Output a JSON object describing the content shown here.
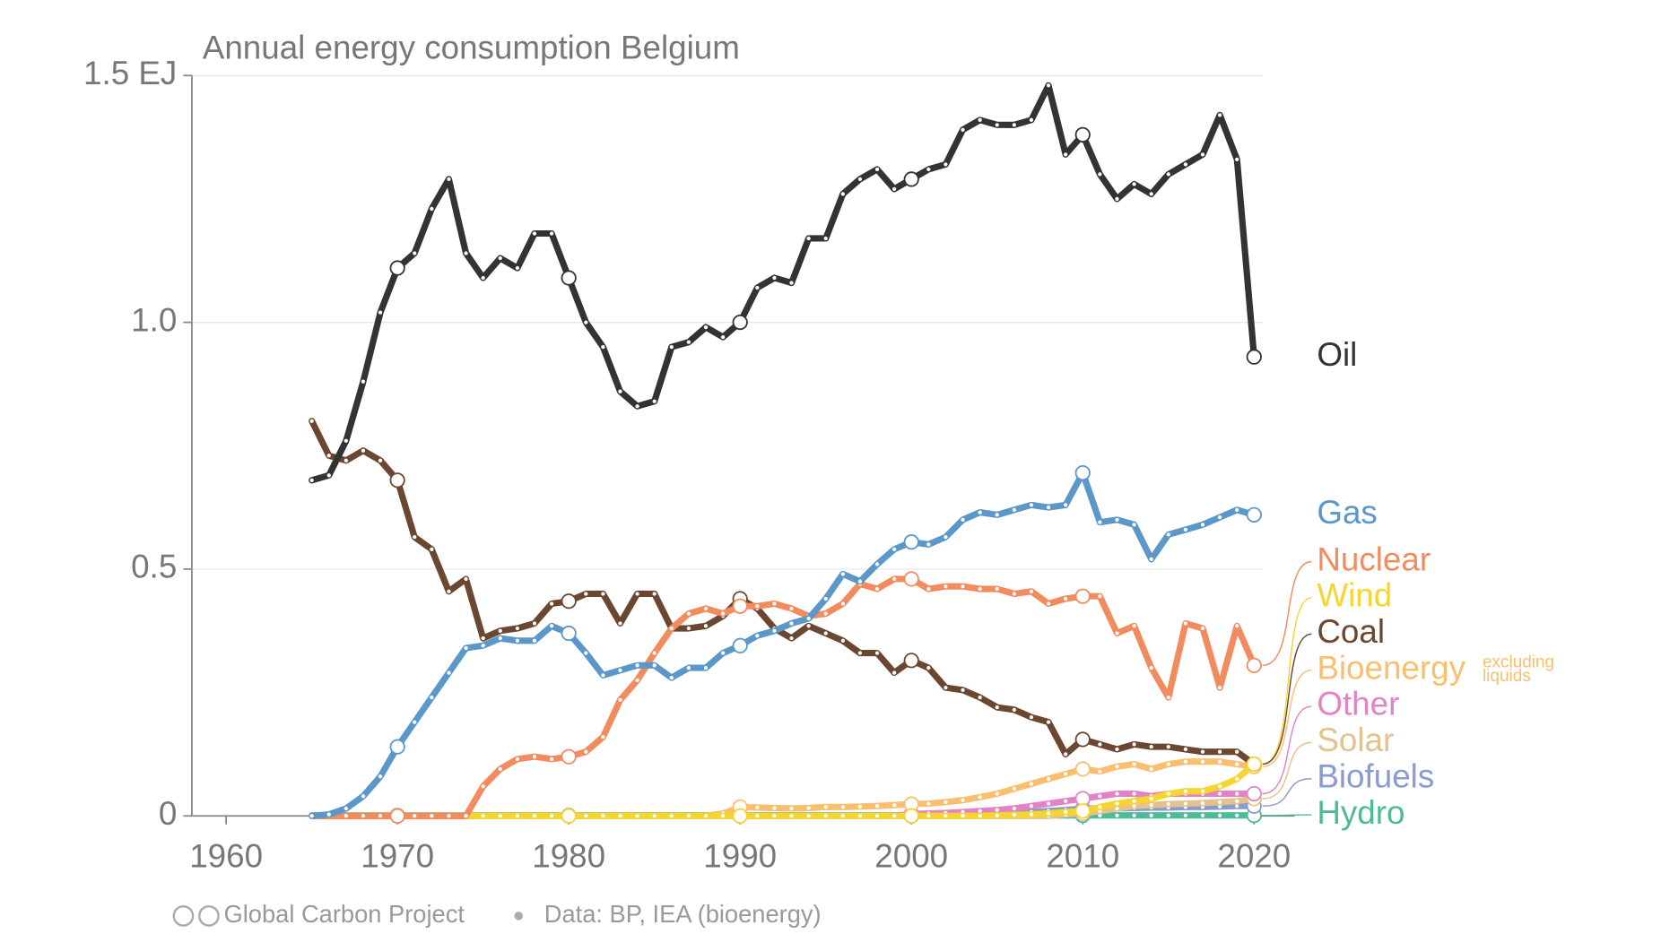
{
  "chart_data": {
    "type": "line",
    "title": "Annual energy consumption Belgium",
    "x": [
      1965,
      1966,
      1967,
      1968,
      1969,
      1970,
      1971,
      1972,
      1973,
      1974,
      1975,
      1976,
      1977,
      1978,
      1979,
      1980,
      1981,
      1982,
      1983,
      1984,
      1985,
      1986,
      1987,
      1988,
      1989,
      1990,
      1991,
      1992,
      1993,
      1994,
      1995,
      1996,
      1997,
      1998,
      1999,
      2000,
      2001,
      2002,
      2003,
      2004,
      2005,
      2006,
      2007,
      2008,
      2009,
      2010,
      2011,
      2012,
      2013,
      2014,
      2015,
      2016,
      2017,
      2018,
      2019,
      2020
    ],
    "xlim": [
      1958,
      2020.5
    ],
    "xticks": [
      1960,
      1970,
      1980,
      1990,
      2000,
      2010,
      2020
    ],
    "ylim": [
      0,
      1.5
    ],
    "yticks": [
      0,
      0.5,
      {
        "value": 1.0,
        "label": "1.0"
      },
      {
        "value": 1.5,
        "label": "1.5 EJ"
      }
    ],
    "grid": true,
    "series": [
      {
        "name": "Oil",
        "color": "#333333",
        "values": [
          0.68,
          0.69,
          0.76,
          0.88,
          1.02,
          1.11,
          1.14,
          1.23,
          1.29,
          1.14,
          1.09,
          1.13,
          1.11,
          1.18,
          1.18,
          1.09,
          1.0,
          0.95,
          0.86,
          0.83,
          0.84,
          0.95,
          0.96,
          0.99,
          0.97,
          1.0,
          1.07,
          1.09,
          1.08,
          1.17,
          1.17,
          1.26,
          1.29,
          1.31,
          1.27,
          1.29,
          1.31,
          1.32,
          1.39,
          1.41,
          1.4,
          1.4,
          1.41,
          1.48,
          1.34,
          1.38,
          1.3,
          1.25,
          1.28,
          1.26,
          1.3,
          1.32,
          1.34,
          1.42,
          1.33,
          0.93
        ]
      },
      {
        "name": "Gas",
        "color": "#5b97c9",
        "values": [
          0,
          0.003,
          0.015,
          0.04,
          0.08,
          0.14,
          0.19,
          0.24,
          0.29,
          0.34,
          0.345,
          0.36,
          0.355,
          0.355,
          0.385,
          0.37,
          0.33,
          0.285,
          0.295,
          0.305,
          0.305,
          0.28,
          0.3,
          0.3,
          0.33,
          0.345,
          0.365,
          0.375,
          0.39,
          0.4,
          0.44,
          0.49,
          0.475,
          0.51,
          0.54,
          0.555,
          0.55,
          0.565,
          0.6,
          0.615,
          0.61,
          0.62,
          0.63,
          0.625,
          0.63,
          0.695,
          0.595,
          0.6,
          0.59,
          0.52,
          0.57,
          0.58,
          0.59,
          0.605,
          0.62,
          0.61
        ]
      },
      {
        "name": "Nuclear",
        "color": "#f28b5d",
        "values": [
          0,
          0,
          0,
          0,
          0,
          0,
          0,
          0,
          0,
          0,
          0.06,
          0.095,
          0.115,
          0.12,
          0.115,
          0.12,
          0.13,
          0.16,
          0.235,
          0.275,
          0.33,
          0.38,
          0.41,
          0.42,
          0.41,
          0.425,
          0.425,
          0.43,
          0.42,
          0.405,
          0.41,
          0.43,
          0.47,
          0.46,
          0.48,
          0.48,
          0.46,
          0.465,
          0.465,
          0.46,
          0.46,
          0.45,
          0.455,
          0.43,
          0.44,
          0.445,
          0.445,
          0.37,
          0.385,
          0.3,
          0.24,
          0.39,
          0.38,
          0.26,
          0.385,
          0.305
        ]
      },
      {
        "name": "Wind",
        "color": "#f7d42f",
        "values": [
          0,
          0,
          0,
          0,
          0,
          0,
          0,
          0,
          0,
          0,
          0,
          0,
          0,
          0,
          0,
          0,
          0,
          0,
          0,
          0,
          0,
          0,
          0,
          0,
          0,
          0,
          0,
          0,
          0,
          0,
          0,
          0,
          0,
          0,
          0,
          0,
          0,
          0,
          0,
          0,
          0.001,
          0.002,
          0.003,
          0.005,
          0.008,
          0.01,
          0.018,
          0.025,
          0.03,
          0.035,
          0.045,
          0.05,
          0.05,
          0.06,
          0.075,
          0.105
        ]
      },
      {
        "name": "Coal",
        "color": "#6b4630",
        "values": [
          0.8,
          0.73,
          0.72,
          0.74,
          0.72,
          0.68,
          0.565,
          0.54,
          0.455,
          0.48,
          0.36,
          0.375,
          0.38,
          0.39,
          0.43,
          0.435,
          0.45,
          0.45,
          0.39,
          0.45,
          0.45,
          0.38,
          0.38,
          0.385,
          0.405,
          0.44,
          0.42,
          0.38,
          0.36,
          0.385,
          0.37,
          0.355,
          0.33,
          0.33,
          0.29,
          0.315,
          0.3,
          0.26,
          0.255,
          0.24,
          0.22,
          0.215,
          0.2,
          0.19,
          0.125,
          0.155,
          0.145,
          0.135,
          0.145,
          0.14,
          0.14,
          0.135,
          0.13,
          0.13,
          0.13,
          0.105
        ]
      },
      {
        "name": "Bioenergy",
        "color": "#f9bf6e",
        "values": [
          0,
          0,
          0,
          0,
          0,
          0,
          0,
          0,
          0,
          0,
          0,
          0,
          0,
          0,
          0,
          0,
          0,
          0,
          0,
          0,
          0,
          0,
          0,
          0,
          0.005,
          0.018,
          0.017,
          0.016,
          0.015,
          0.016,
          0.018,
          0.018,
          0.019,
          0.02,
          0.022,
          0.024,
          0.025,
          0.028,
          0.032,
          0.038,
          0.045,
          0.055,
          0.065,
          0.075,
          0.085,
          0.095,
          0.09,
          0.1,
          0.105,
          0.095,
          0.105,
          0.11,
          0.11,
          0.11,
          0.105,
          0.1
        ]
      },
      {
        "name": "Other",
        "color": "#e284c4",
        "values": [
          0,
          0,
          0,
          0,
          0,
          0,
          0,
          0,
          0,
          0,
          0,
          0,
          0,
          0,
          0,
          0,
          0,
          0,
          0,
          0,
          0,
          0,
          0,
          0,
          0,
          0,
          0,
          0,
          0,
          0,
          0,
          0,
          0,
          0,
          0,
          0.004,
          0.005,
          0.006,
          0.008,
          0.01,
          0.012,
          0.015,
          0.02,
          0.025,
          0.03,
          0.035,
          0.04,
          0.045,
          0.045,
          0.04,
          0.045,
          0.045,
          0.045,
          0.045,
          0.045,
          0.045
        ]
      },
      {
        "name": "Solar",
        "color": "#e3c28e",
        "values": [
          0,
          0,
          0,
          0,
          0,
          0,
          0,
          0,
          0,
          0,
          0,
          0,
          0,
          0,
          0,
          0,
          0,
          0,
          0,
          0,
          0,
          0,
          0,
          0,
          0,
          0,
          0,
          0,
          0,
          0,
          0,
          0,
          0,
          0,
          0,
          0,
          0,
          0,
          0,
          0,
          0,
          0,
          0,
          0,
          0.003,
          0.005,
          0.01,
          0.015,
          0.02,
          0.022,
          0.024,
          0.025,
          0.026,
          0.028,
          0.03,
          0.035
        ]
      },
      {
        "name": "Biofuels",
        "color": "#8a9bd0",
        "values": [
          0,
          0,
          0,
          0,
          0,
          0,
          0,
          0,
          0,
          0,
          0,
          0,
          0,
          0,
          0,
          0,
          0,
          0,
          0,
          0,
          0,
          0,
          0,
          0,
          0,
          0,
          0,
          0,
          0,
          0,
          0,
          0,
          0,
          0,
          0,
          0,
          0,
          0,
          0,
          0,
          0.002,
          0.005,
          0.008,
          0.01,
          0.012,
          0.015,
          0.015,
          0.015,
          0.016,
          0.017,
          0.017,
          0.018,
          0.018,
          0.019,
          0.02,
          0.02
        ]
      },
      {
        "name": "Hydro",
        "color": "#4dba98",
        "values": [
          0.001,
          0.001,
          0.001,
          0.001,
          0.001,
          0.001,
          0.001,
          0.001,
          0.001,
          0.001,
          0.001,
          0.001,
          0.001,
          0.001,
          0.001,
          0.001,
          0.001,
          0.001,
          0.001,
          0.001,
          0.001,
          0.001,
          0.001,
          0.001,
          0.001,
          0.001,
          0.001,
          0.001,
          0.001,
          0.001,
          0.001,
          0.001,
          0.001,
          0.001,
          0.001,
          0.001,
          0.001,
          0.001,
          0.001,
          0.001,
          0.001,
          0.001,
          0.001,
          0.001,
          0.001,
          0.001,
          0.001,
          0.001,
          0.001,
          0.001,
          0.001,
          0.001,
          0.001,
          0.001,
          0.001,
          0.001
        ]
      }
    ],
    "annotation": [
      "excluding",
      "liquids"
    ],
    "source": "Global Carbon Project",
    "data_source": "Data: BP, IEA (bioenergy)"
  }
}
